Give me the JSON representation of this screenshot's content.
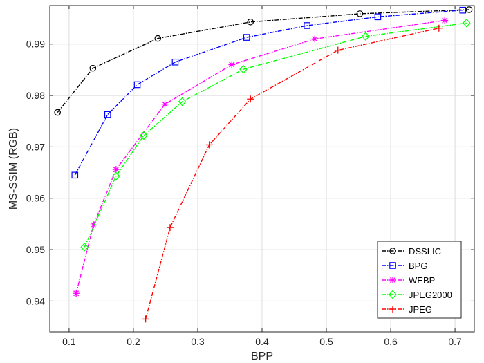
{
  "chart_data": {
    "type": "line",
    "title": "",
    "xlabel": "BPP",
    "ylabel": "MS-SSIM (RGB)",
    "xlim": [
      0.07,
      0.73
    ],
    "ylim": [
      0.934,
      0.9975
    ],
    "xticks": [
      0.1,
      0.2,
      0.3,
      0.4,
      0.5,
      0.6,
      0.7
    ],
    "xtick_labels": [
      "0.1",
      "0.2",
      "0.3",
      "0.4",
      "0.5",
      "0.6",
      "0.7"
    ],
    "yticks": [
      0.94,
      0.95,
      0.96,
      0.97,
      0.98,
      0.99
    ],
    "ytick_labels": [
      "0.94",
      "0.95",
      "0.96",
      "0.97",
      "0.98",
      "0.99"
    ],
    "grid": true,
    "legend_position": "bottom-right",
    "series": [
      {
        "name": "DSSLIC",
        "color": "#000000",
        "marker": "circle",
        "x": [
          0.082,
          0.137,
          0.238,
          0.382,
          0.552,
          0.722
        ],
        "y": [
          0.9767,
          0.9853,
          0.9911,
          0.9943,
          0.9959,
          0.9967
        ]
      },
      {
        "name": "BPG",
        "color": "#0000ff",
        "marker": "square",
        "x": [
          0.109,
          0.16,
          0.206,
          0.265,
          0.376,
          0.47,
          0.58,
          0.712
        ],
        "y": [
          0.9645,
          0.9763,
          0.9821,
          0.9865,
          0.9913,
          0.9936,
          0.9953,
          0.9966
        ]
      },
      {
        "name": "WEBP",
        "color": "#ff00ff",
        "marker": "asterisk",
        "x": [
          0.111,
          0.138,
          0.173,
          0.249,
          0.353,
          0.482,
          0.684
        ],
        "y": [
          0.9415,
          0.9548,
          0.9656,
          0.9783,
          0.986,
          0.991,
          0.9946
        ]
      },
      {
        "name": "JPEG2000",
        "color": "#00ff00",
        "marker": "diamond",
        "x": [
          0.124,
          0.173,
          0.216,
          0.276,
          0.371,
          0.561,
          0.718
        ],
        "y": [
          0.9505,
          0.9643,
          0.9722,
          0.9788,
          0.9851,
          0.9915,
          0.9941
        ]
      },
      {
        "name": "JPEG",
        "color": "#ff0000",
        "marker": "plus",
        "x": [
          0.219,
          0.257,
          0.318,
          0.382,
          0.518,
          0.675
        ],
        "y": [
          0.9365,
          0.9543,
          0.9704,
          0.9793,
          0.9888,
          0.9931
        ]
      }
    ]
  }
}
